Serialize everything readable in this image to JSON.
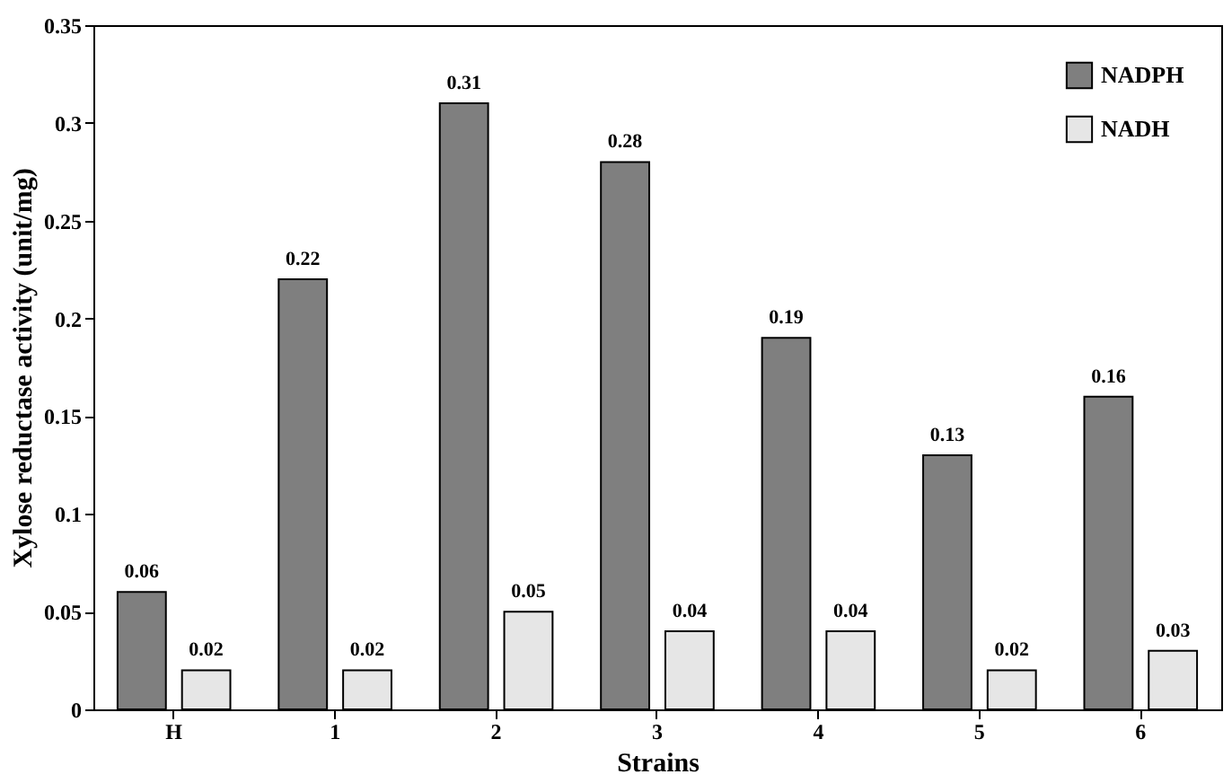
{
  "chart_data": {
    "type": "bar",
    "xlabel": "Strains",
    "ylabel": "Xylose reductase activity (unit/mg)",
    "categories": [
      "H",
      "1",
      "2",
      "3",
      "4",
      "5",
      "6"
    ],
    "series": [
      {
        "name": "NADPH",
        "color": "#7f7f7f",
        "values": [
          0.06,
          0.22,
          0.31,
          0.28,
          0.19,
          0.13,
          0.16
        ]
      },
      {
        "name": "NADH",
        "color": "#e6e6e6",
        "values": [
          0.02,
          0.02,
          0.05,
          0.04,
          0.04,
          0.02,
          0.03
        ]
      }
    ],
    "ylim": [
      0,
      0.35
    ],
    "yticks": [
      0,
      0.05,
      0.1,
      0.15,
      0.2,
      0.25,
      0.3,
      0.35
    ],
    "data_labels": true,
    "legend": "top right",
    "grid": false
  }
}
